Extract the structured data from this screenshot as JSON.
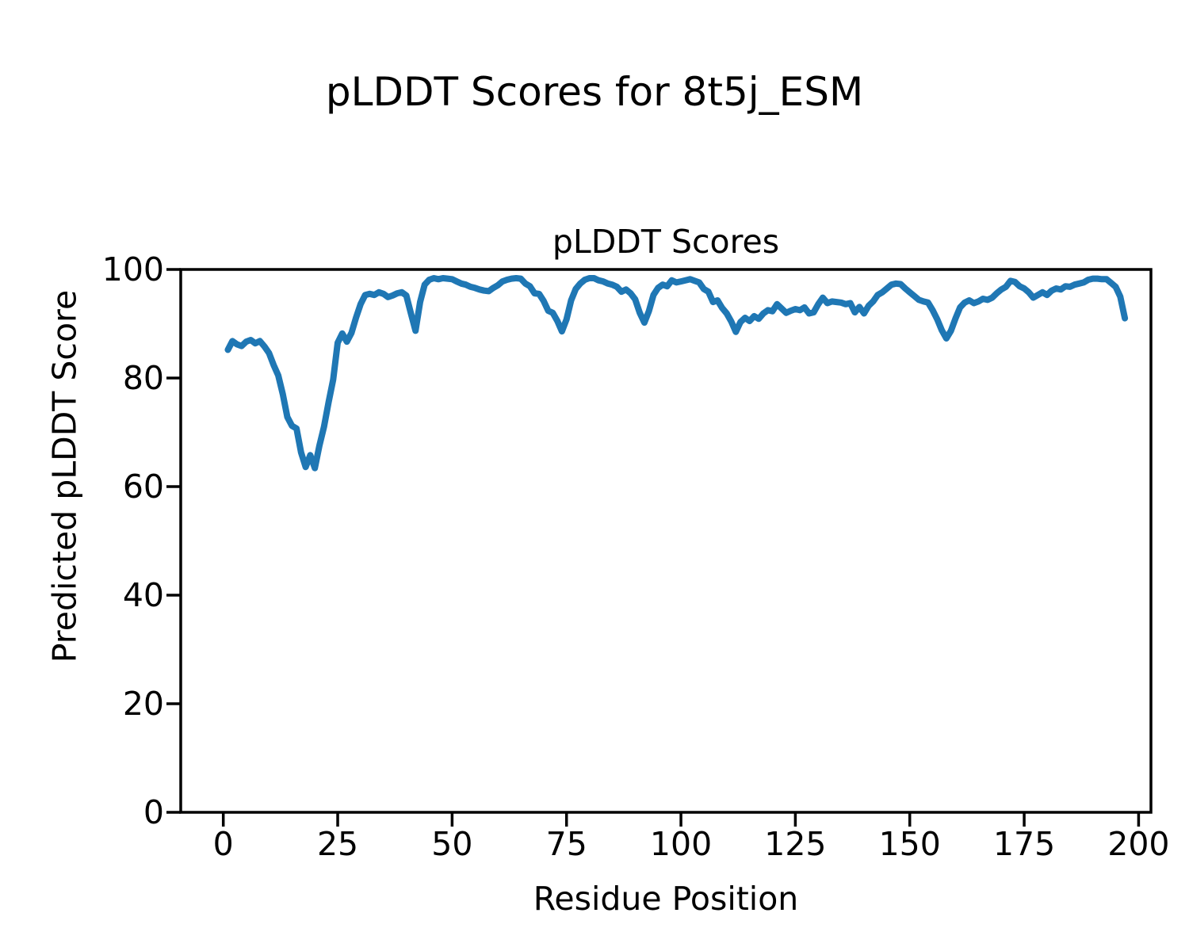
{
  "figure": {
    "suptitle": "pLDDT Scores for 8t5j_ESM",
    "background_color": "#ffffff",
    "text_color": "#000000"
  },
  "chart_data": {
    "type": "line",
    "title": "pLDDT Scores",
    "xlabel": "Residue Position",
    "ylabel": "Predicted pLDDT Score",
    "xlim": [
      -9.3,
      202.7
    ],
    "ylim": [
      0,
      100
    ],
    "xticks": [
      0,
      25,
      50,
      75,
      100,
      125,
      150,
      175,
      200
    ],
    "yticks": [
      0,
      20,
      40,
      60,
      80,
      100
    ],
    "grid": false,
    "legend": "none",
    "series": [
      {
        "name": "pLDDT",
        "color": "#1f77b4",
        "line_width": 8,
        "x_start": 1,
        "x_step": 1,
        "values": [
          85.2,
          86.8,
          86.2,
          85.9,
          86.7,
          87.0,
          86.4,
          86.8,
          85.8,
          84.6,
          82.4,
          80.5,
          77.0,
          72.8,
          71.2,
          70.7,
          66.3,
          63.6,
          65.8,
          63.4,
          67.5,
          71.0,
          75.5,
          79.7,
          86.5,
          88.2,
          86.7,
          88.3,
          91.1,
          93.6,
          95.3,
          95.5,
          95.3,
          95.8,
          95.5,
          94.9,
          95.2,
          95.6,
          95.8,
          95.2,
          91.9,
          88.7,
          94.0,
          97.2,
          98.1,
          98.4,
          98.2,
          98.4,
          98.3,
          98.2,
          97.8,
          97.4,
          97.2,
          96.8,
          96.6,
          96.3,
          96.1,
          96.0,
          96.6,
          97.1,
          97.8,
          98.1,
          98.3,
          98.4,
          98.3,
          97.4,
          96.9,
          95.6,
          95.5,
          94.2,
          92.4,
          92.0,
          90.5,
          88.6,
          90.8,
          94.3,
          96.4,
          97.4,
          98.1,
          98.4,
          98.4,
          98.0,
          97.8,
          97.4,
          97.2,
          96.8,
          95.9,
          96.3,
          95.6,
          94.5,
          92.0,
          90.2,
          92.3,
          95.3,
          96.6,
          97.2,
          96.9,
          98.0,
          97.6,
          97.8,
          98.0,
          98.2,
          97.9,
          97.6,
          96.4,
          95.9,
          94.0,
          94.3,
          92.9,
          91.9,
          90.4,
          88.5,
          90.3,
          91.1,
          90.5,
          91.4,
          90.9,
          91.9,
          92.5,
          92.3,
          93.6,
          92.8,
          92.0,
          92.4,
          92.7,
          92.5,
          93.0,
          91.9,
          92.1,
          93.6,
          94.8,
          93.8,
          94.1,
          94.0,
          93.9,
          93.6,
          93.8,
          92.1,
          93.1,
          91.9,
          93.3,
          94.1,
          95.3,
          95.8,
          96.5,
          97.2,
          97.4,
          97.3,
          96.5,
          95.8,
          95.1,
          94.4,
          94.1,
          93.9,
          92.5,
          90.8,
          88.8,
          87.3,
          88.7,
          91.0,
          93.0,
          93.9,
          94.3,
          93.8,
          94.1,
          94.6,
          94.4,
          94.8,
          95.6,
          96.3,
          96.8,
          97.9,
          97.7,
          96.9,
          96.5,
          95.8,
          94.8,
          95.3,
          95.8,
          95.3,
          96.1,
          96.5,
          96.3,
          96.9,
          96.8,
          97.2,
          97.4,
          97.6,
          98.1,
          98.3,
          98.3,
          98.2,
          98.2,
          97.5,
          96.8,
          95.0,
          91.0
        ]
      }
    ]
  }
}
